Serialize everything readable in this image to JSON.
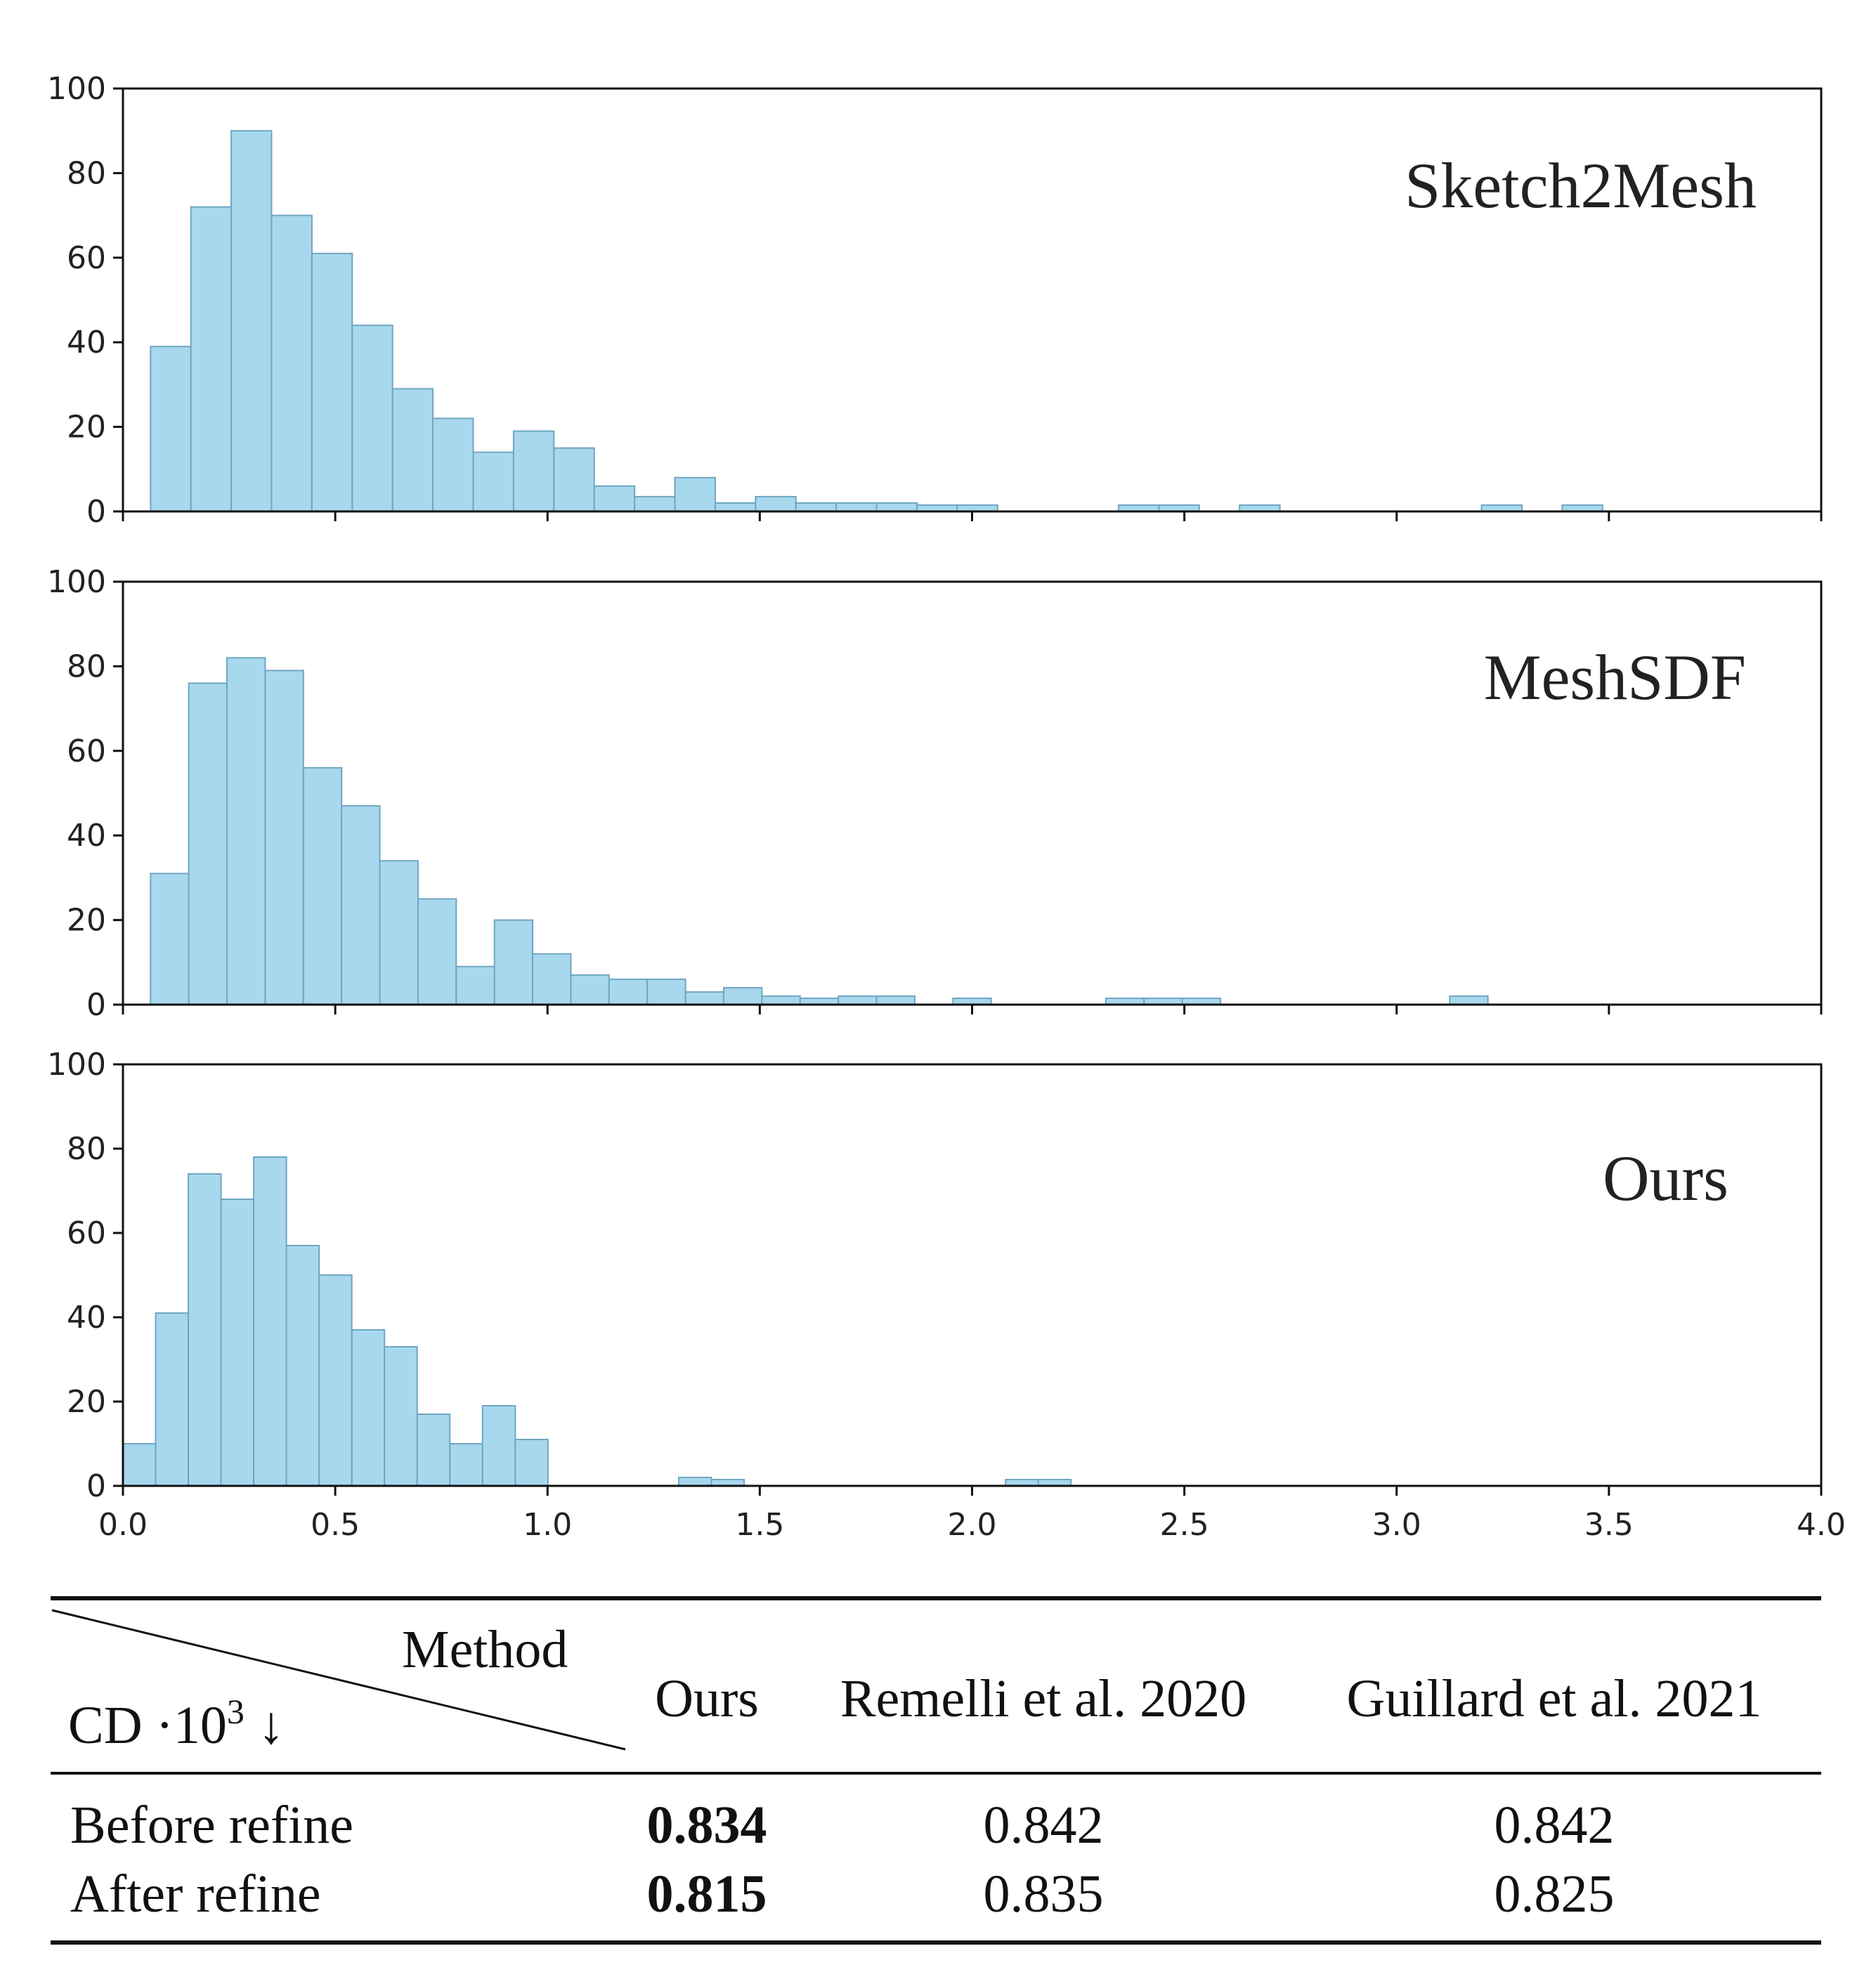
{
  "colors": {
    "bar_fill": "#a8d8ee",
    "bar_stroke": "#6fa6c2",
    "axis": "#111111",
    "text": "#222222"
  },
  "chart_data": [
    {
      "type": "bar",
      "title": "Sketch2Mesh",
      "bin_width": 0.095,
      "bin_start": 0.065,
      "ylim": [
        0,
        100
      ],
      "xlim": [
        0,
        4.0
      ],
      "yticks": [
        0,
        20,
        40,
        60,
        80,
        100
      ],
      "xticks": [
        0.0,
        0.5,
        1.0,
        1.5,
        2.0,
        2.5,
        3.0,
        3.5,
        4.0
      ],
      "show_xtick_labels": false,
      "values": [
        39,
        72,
        90,
        70,
        61,
        44,
        29,
        22,
        14,
        19,
        15,
        6,
        3.5,
        8,
        2,
        3.5,
        2,
        2,
        2,
        1.5,
        1.5,
        0,
        0,
        0,
        1.5,
        1.5,
        0,
        1.5,
        0,
        0,
        0,
        0,
        0,
        1.5,
        0,
        1.5
      ]
    },
    {
      "type": "bar",
      "title": "MeshSDF",
      "bin_width": 0.09,
      "bin_start": 0.065,
      "ylim": [
        0,
        100
      ],
      "xlim": [
        0,
        4.0
      ],
      "yticks": [
        0,
        20,
        40,
        60,
        80,
        100
      ],
      "xticks": [
        0.0,
        0.5,
        1.0,
        1.5,
        2.0,
        2.5,
        3.0,
        3.5,
        4.0
      ],
      "show_xtick_labels": false,
      "values": [
        31,
        76,
        82,
        79,
        56,
        47,
        34,
        25,
        9,
        20,
        12,
        7,
        6,
        6,
        3,
        4,
        2,
        1.5,
        2,
        2,
        0,
        1.5,
        0,
        0,
        0,
        1.5,
        1.5,
        1.5,
        0,
        0,
        0,
        0,
        0,
        0,
        2
      ]
    },
    {
      "type": "bar",
      "title": "Ours",
      "bin_width": 0.077,
      "bin_start": 0.0,
      "ylim": [
        0,
        100
      ],
      "xlim": [
        0,
        4.0
      ],
      "yticks": [
        0,
        20,
        40,
        60,
        80,
        100
      ],
      "xticks": [
        0.0,
        0.5,
        1.0,
        1.5,
        2.0,
        2.5,
        3.0,
        3.5,
        4.0
      ],
      "show_xtick_labels": true,
      "values": [
        10,
        41,
        74,
        68,
        78,
        57,
        50,
        37,
        33,
        17,
        10,
        19,
        11,
        0,
        0,
        0,
        0,
        2,
        1.5,
        0,
        0,
        0,
        0,
        0,
        0,
        0,
        0,
        1.5,
        1.5
      ]
    }
  ],
  "table": {
    "corner_top": "Method",
    "corner_bottom": "CD ·10",
    "corner_sup": "3",
    "corner_arrow": "↓",
    "columns": [
      "Ours",
      "Remelli et al. 2020",
      "Guillard et al. 2021"
    ],
    "rows": [
      {
        "label": "Before refine",
        "values": [
          "0.834",
          "0.842",
          "0.842"
        ]
      },
      {
        "label": "After refine",
        "values": [
          "0.815",
          "0.835",
          "0.825"
        ]
      }
    ]
  }
}
